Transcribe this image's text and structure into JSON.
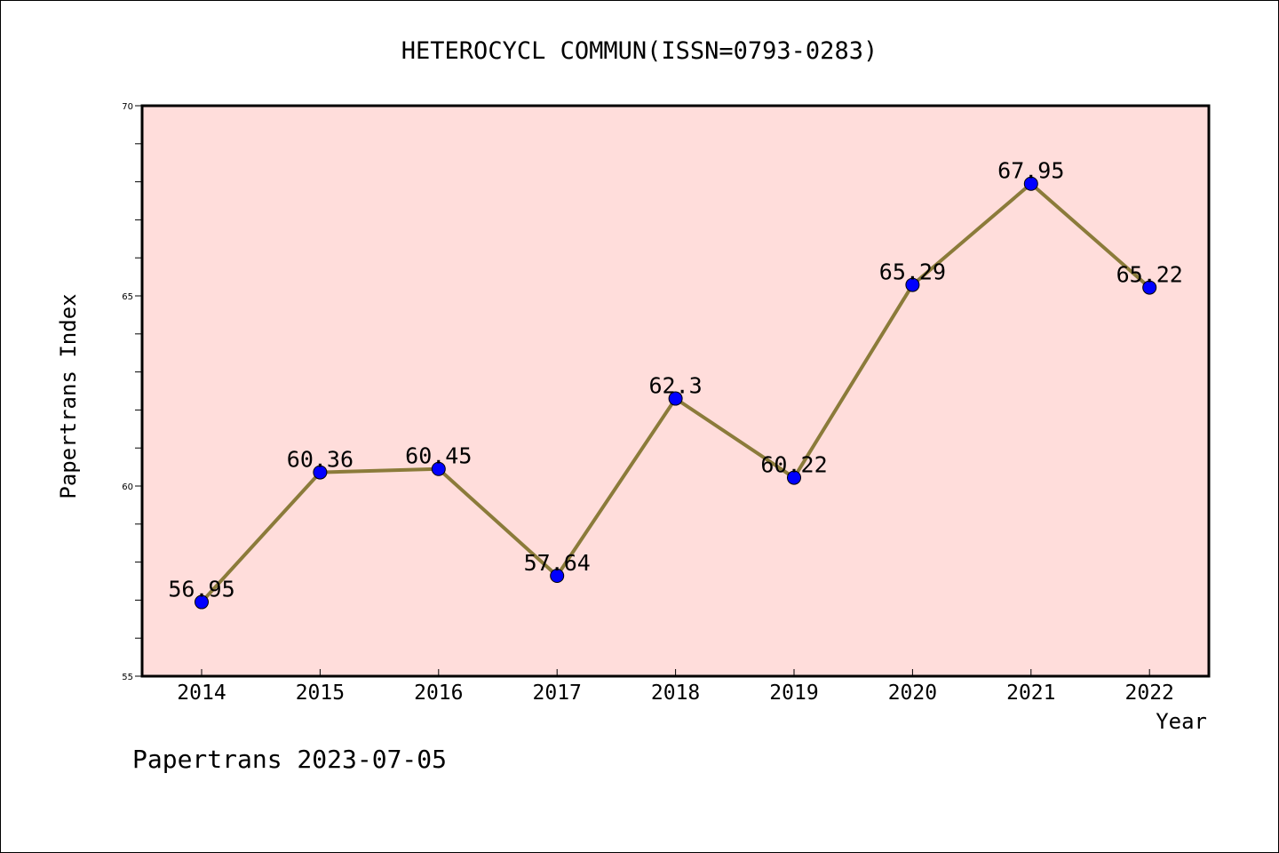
{
  "chart_data": {
    "type": "line",
    "title": "HETEROCYCL COMMUN(ISSN=0793-0283)",
    "xlabel": "Year",
    "ylabel": "Papertrans Index",
    "categories": [
      "2014",
      "2015",
      "2016",
      "2017",
      "2018",
      "2019",
      "2020",
      "2021",
      "2022"
    ],
    "series": [
      {
        "values": [
          56.95,
          60.36,
          60.45,
          57.64,
          62.3,
          60.22,
          65.29,
          67.95,
          65.22
        ],
        "labels": [
          "56.95",
          "60.36",
          "60.45",
          "57.64",
          "62.3",
          "60.22",
          "65.29",
          "67.95",
          "65.22"
        ]
      }
    ],
    "ylim": [
      55,
      70
    ],
    "yticks": [
      "55",
      "60",
      "65",
      "70"
    ],
    "grid": false,
    "legend": "none",
    "colors": {
      "plot_background": "#FFDDDB",
      "line": "#8B7B3A",
      "marker": "#0000FF"
    }
  },
  "footer": "Papertrans 2023-07-05"
}
